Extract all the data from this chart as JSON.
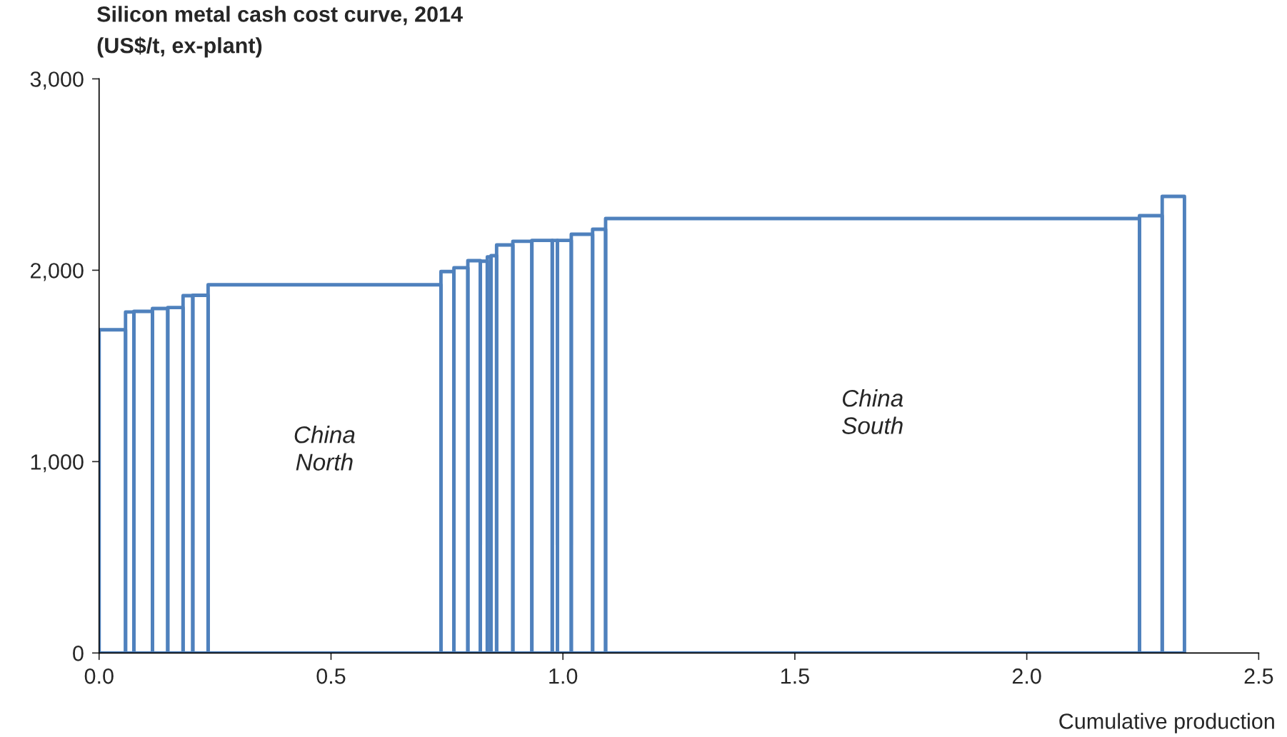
{
  "chart_data": {
    "type": "histogram",
    "title": "Silicon metal cash cost curve, 2014",
    "subtitle": "(US$/t, ex-plant)",
    "xlabel": "Cumulative production",
    "bins": [
      0,
      0.057,
      0.075,
      0.115,
      0.148,
      0.181,
      0.202,
      0.235,
      0.737,
      0.765,
      0.795,
      0.822,
      0.837,
      0.845,
      0.857,
      0.892,
      0.933,
      0.977,
      0.988,
      1.018,
      1.064,
      1.092,
      2.243,
      2.292,
      2.34
    ],
    "values": [
      1689,
      1782,
      1785,
      1800,
      1805,
      1867,
      1869,
      1924,
      1993,
      2013,
      2050,
      2047,
      2070,
      2076,
      2132,
      2151,
      2156,
      2156,
      2156,
      2188,
      2214,
      2270,
      2285,
      2386
    ],
    "color": "#4f81bd",
    "xlim": [
      0,
      2.5
    ],
    "xticks": [
      {
        "value": 0,
        "label": "0.0"
      },
      0.5,
      {
        "value": 1,
        "label": "1.0"
      },
      1.5,
      {
        "value": 2,
        "label": "2.0"
      },
      2.5
    ],
    "ylim": [
      0,
      3000
    ],
    "yticks": [
      0,
      {
        "value": 1000,
        "label": "1,000"
      },
      {
        "value": 2000,
        "label": "2,000"
      },
      {
        "value": 3000,
        "label": "3,000"
      }
    ],
    "grid": false,
    "annotations": [
      "China\nNorth",
      "China\nSouth"
    ]
  }
}
